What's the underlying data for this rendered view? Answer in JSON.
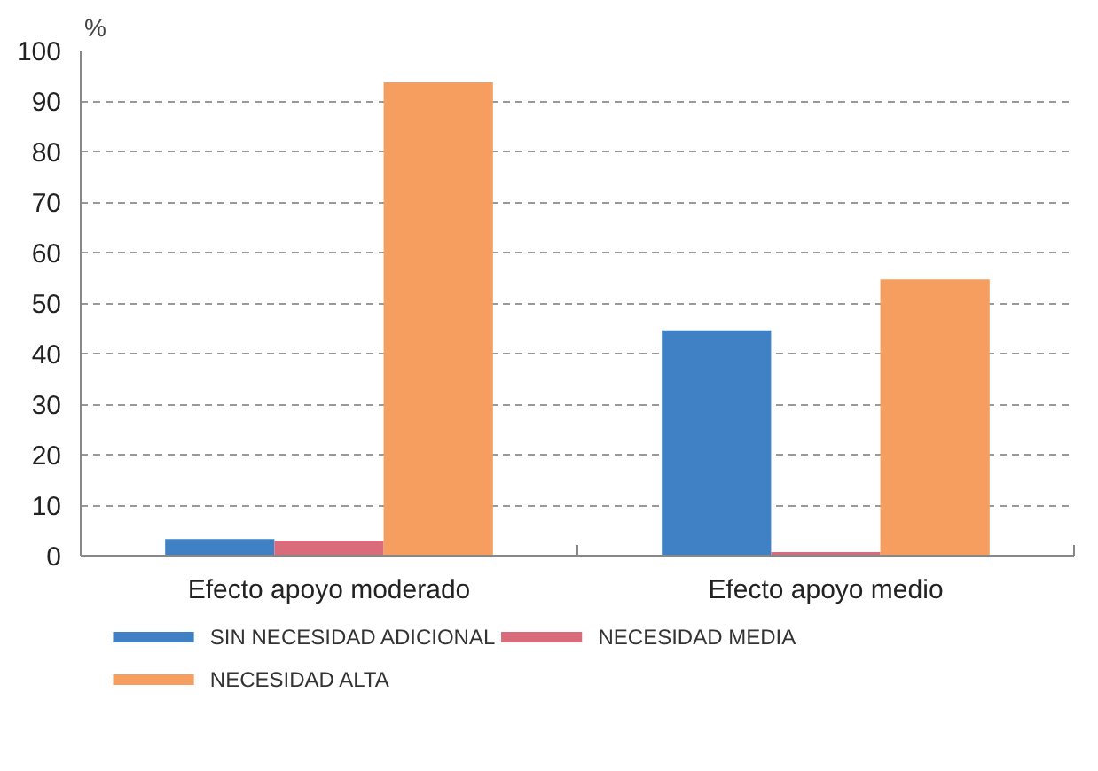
{
  "chart_data": {
    "type": "bar",
    "categories": [
      "Efecto apoyo moderado",
      "Efecto apoyo medio"
    ],
    "ylabel": "%",
    "ylim": [
      0,
      100
    ],
    "yticks": [
      0,
      10,
      20,
      30,
      40,
      50,
      60,
      70,
      80,
      90,
      100
    ],
    "grid": "y",
    "legend": "bottom",
    "series": [
      {
        "name": "SIN NECESIDAD ADICIONAL",
        "color": "#4080c4",
        "values": [
          3.3,
          44.6
        ]
      },
      {
        "name": "NECESIDAD MEDIA",
        "color": "#d96b7a",
        "values": [
          3.0,
          0.7
        ]
      },
      {
        "name": "NECESIDAD ALTA",
        "color": "#f69d60",
        "values": [
          93.7,
          54.7
        ]
      }
    ]
  }
}
